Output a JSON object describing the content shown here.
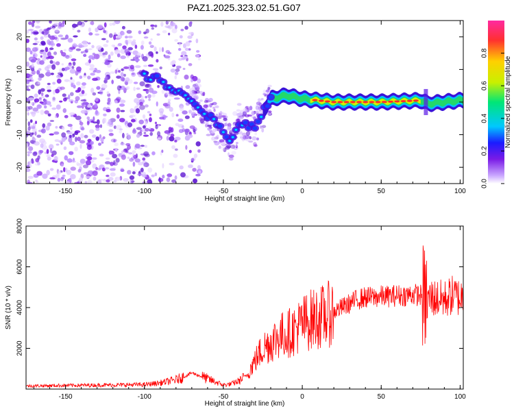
{
  "title": "PAZ1.2025.323.02.51.G07",
  "chart_data": [
    {
      "type": "heatmap",
      "name": "spectrogram",
      "xlabel": "Height of straight line (km)",
      "ylabel": "Frequency (Hz)",
      "xlim": [
        -175,
        102
      ],
      "ylim": [
        -25,
        25
      ],
      "xticks": [
        -150,
        -100,
        -50,
        0,
        50,
        100
      ],
      "yticks": [
        -20,
        -10,
        0,
        10,
        20
      ],
      "description_ridge": {
        "x": [
          -100,
          -90,
          -80,
          -70,
          -60,
          -50,
          -45,
          -40,
          -30,
          -25,
          -20,
          -10,
          0,
          10,
          20,
          50,
          75,
          80,
          90,
          100
        ],
        "y": [
          8,
          7,
          3,
          1,
          -4,
          -9,
          -12,
          -6,
          -8,
          -3,
          1,
          2,
          1,
          0.5,
          0,
          0,
          0.5,
          -0.5,
          0,
          0.5
        ]
      },
      "colorbar": {
        "label": "Normalized spectral amplitude",
        "range": [
          0.0,
          1.0
        ],
        "ticks": [
          "0.0",
          "0.2",
          "0.4",
          "0.6",
          "0.8"
        ],
        "colors": [
          "#ffffff",
          "#c9a6ff",
          "#7a1be6",
          "#1b1bff",
          "#00c8ff",
          "#00e676",
          "#c8f000",
          "#ffd000",
          "#ff3030",
          "#ff2aa0"
        ]
      }
    },
    {
      "type": "line",
      "name": "snr",
      "xlabel": "Height of straight line (km)",
      "ylabel": "SNR (10 * v/v)",
      "xlim": [
        -175,
        102
      ],
      "ylim": [
        0,
        8000
      ],
      "xticks": [
        -150,
        -100,
        -50,
        0,
        50,
        100
      ],
      "yticks": [
        2000,
        4000,
        6000,
        8000
      ],
      "color": "#ff0000",
      "series": [
        {
          "name": "SNR",
          "x": [
            -175,
            -150,
            -120,
            -100,
            -90,
            -80,
            -75,
            -70,
            -65,
            -60,
            -55,
            -50,
            -45,
            -40,
            -35,
            -30,
            -25,
            -20,
            -15,
            -10,
            -5,
            0,
            5,
            10,
            15,
            20,
            25,
            30,
            35,
            40,
            45,
            50,
            55,
            60,
            65,
            70,
            75,
            78,
            80,
            85,
            90,
            95,
            100,
            102
          ],
          "y": [
            150,
            180,
            200,
            220,
            300,
            450,
            600,
            800,
            650,
            500,
            350,
            200,
            250,
            400,
            700,
            1400,
            2000,
            2300,
            2600,
            2700,
            2900,
            3200,
            3400,
            3500,
            3600,
            3800,
            4000,
            4200,
            4400,
            4500,
            4500,
            4550,
            4550,
            4600,
            4600,
            4650,
            4600,
            4400,
            4500,
            4450,
            4400,
            4600,
            4500,
            4600
          ]
        }
      ]
    }
  ]
}
